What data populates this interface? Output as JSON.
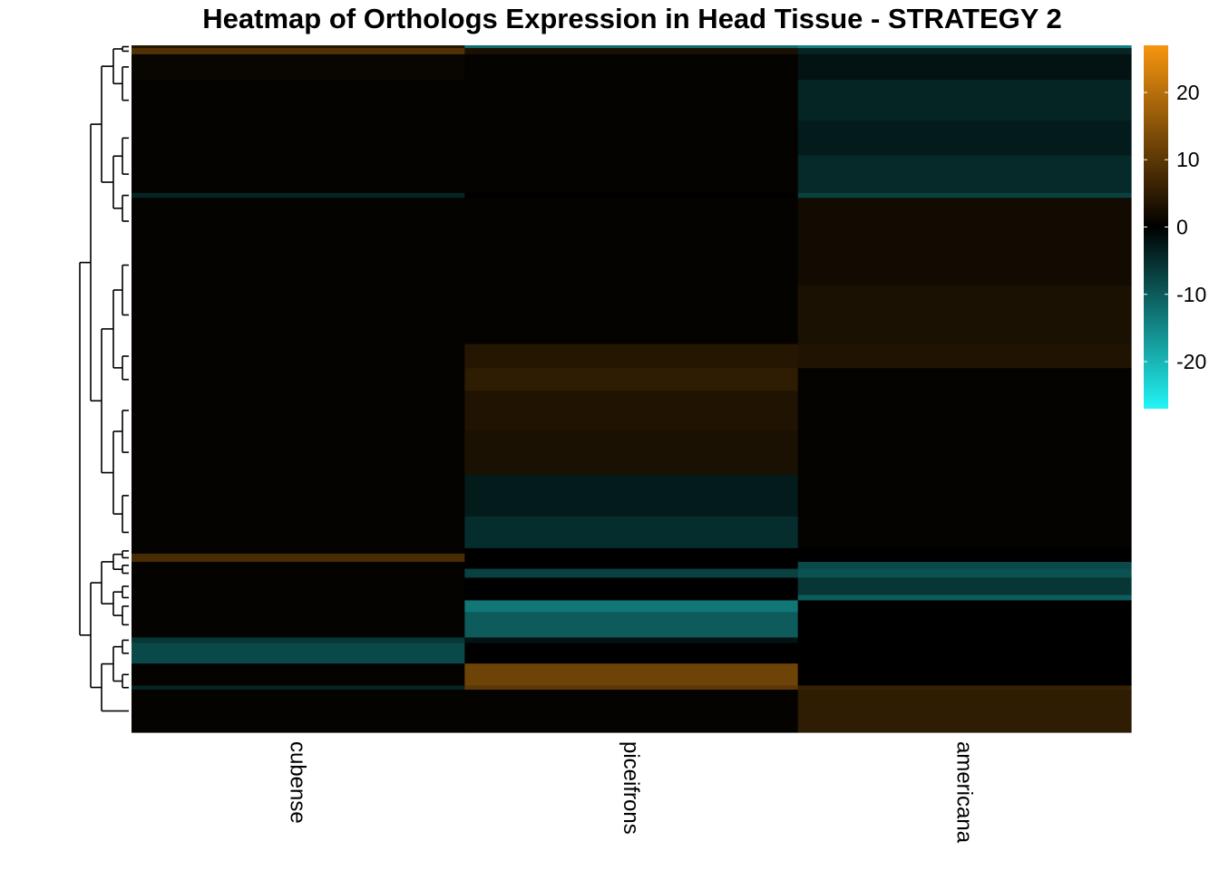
{
  "chart_data": {
    "type": "heatmap",
    "title": "Heatmap of Orthologs Expression in Head Tissue - STRATEGY 2",
    "columns": [
      "cubense",
      "piceifrons",
      "americana"
    ],
    "row_axis": {
      "min": 0,
      "max": 1
    },
    "color_scale": {
      "min": -27,
      "max": 27,
      "ticks": [
        20,
        10,
        0,
        -10,
        -20
      ],
      "tick_labels": [
        "20",
        "10",
        "0",
        "-10",
        "-20"
      ],
      "colors": {
        "low": "#22f5f5",
        "mid": "#000000",
        "high": "#f7960f"
      }
    },
    "row_clusters": [
      {
        "from": 0.0,
        "to": 0.004,
        "values": [
          4,
          -12,
          -14
        ]
      },
      {
        "from": 0.004,
        "to": 0.013,
        "values": [
          9,
          3,
          -4
        ]
      },
      {
        "from": 0.013,
        "to": 0.05,
        "values": [
          1,
          0.5,
          -2
        ]
      },
      {
        "from": 0.05,
        "to": 0.11,
        "values": [
          0.5,
          0.5,
          -4
        ]
      },
      {
        "from": 0.11,
        "to": 0.16,
        "values": [
          0.5,
          0.5,
          -3
        ]
      },
      {
        "from": 0.16,
        "to": 0.215,
        "values": [
          0.5,
          0.5,
          -4.5
        ]
      },
      {
        "from": 0.215,
        "to": 0.222,
        "values": [
          -4,
          0,
          -7
        ]
      },
      {
        "from": 0.222,
        "to": 0.29,
        "values": [
          0.5,
          0.5,
          2
        ]
      },
      {
        "from": 0.29,
        "to": 0.35,
        "values": [
          0.5,
          0.5,
          2
        ]
      },
      {
        "from": 0.35,
        "to": 0.435,
        "values": [
          0.5,
          0.5,
          3
        ]
      },
      {
        "from": 0.435,
        "to": 0.47,
        "values": [
          0.5,
          4,
          3.5
        ]
      },
      {
        "from": 0.47,
        "to": 0.503,
        "values": [
          0.5,
          5,
          0.5
        ]
      },
      {
        "from": 0.503,
        "to": 0.56,
        "values": [
          0.5,
          3.5,
          0.5
        ]
      },
      {
        "from": 0.56,
        "to": 0.625,
        "values": [
          0.5,
          3,
          0.5
        ]
      },
      {
        "from": 0.625,
        "to": 0.686,
        "values": [
          0.5,
          -3,
          0.5
        ]
      },
      {
        "from": 0.686,
        "to": 0.732,
        "values": [
          0.5,
          -5,
          0.5
        ]
      },
      {
        "from": 0.732,
        "to": 0.74,
        "values": [
          0.5,
          0,
          0
        ]
      },
      {
        "from": 0.74,
        "to": 0.752,
        "values": [
          8,
          0,
          0
        ]
      },
      {
        "from": 0.752,
        "to": 0.762,
        "values": [
          0.5,
          0,
          -8
        ]
      },
      {
        "from": 0.762,
        "to": 0.775,
        "values": [
          0.5,
          -7,
          -9
        ]
      },
      {
        "from": 0.775,
        "to": 0.8,
        "values": [
          0.5,
          0,
          -6
        ]
      },
      {
        "from": 0.8,
        "to": 0.808,
        "values": [
          0.5,
          0,
          -10
        ]
      },
      {
        "from": 0.808,
        "to": 0.825,
        "values": [
          0.5,
          -13,
          0
        ]
      },
      {
        "from": 0.825,
        "to": 0.862,
        "values": [
          0.5,
          -10,
          0
        ]
      },
      {
        "from": 0.862,
        "to": 0.87,
        "values": [
          -6,
          -2,
          0
        ]
      },
      {
        "from": 0.87,
        "to": 0.9,
        "values": [
          -8,
          0,
          0
        ]
      },
      {
        "from": 0.9,
        "to": 0.932,
        "values": [
          0.5,
          12,
          0
        ]
      },
      {
        "from": 0.932,
        "to": 0.938,
        "values": [
          -4,
          10,
          6
        ]
      },
      {
        "from": 0.938,
        "to": 1.0,
        "values": [
          0.5,
          0.5,
          5
        ]
      }
    ]
  }
}
